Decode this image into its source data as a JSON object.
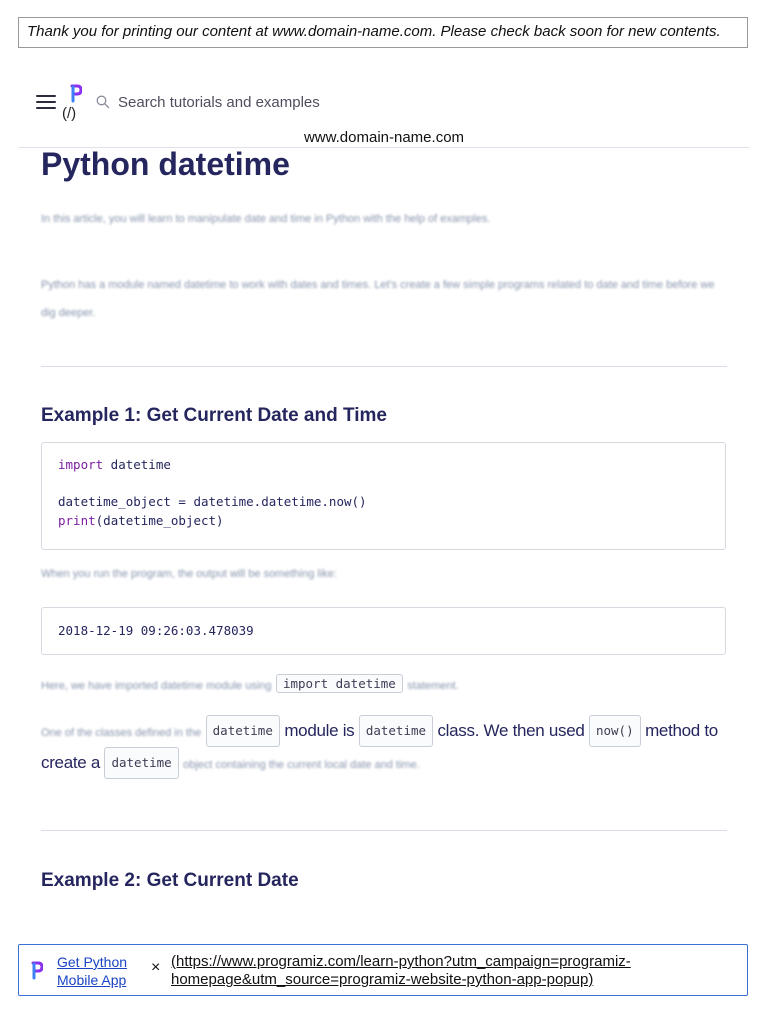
{
  "print_banner": "Thank you for printing our content at www.domain-name.com. Please check back soon for new contents.",
  "nav": {
    "logo_link": "(/)",
    "search_placeholder": "Search tutorials and examples",
    "domain": "www.domain-name.com",
    "icons": [
      "menu-icon",
      "programiz-logo-icon",
      "search-icon"
    ]
  },
  "article": {
    "title": "Python datetime",
    "intro_1": "In this article, you will learn to manipulate date and time in Python with the help of examples.",
    "intro_2": "Python has a module named datetime to work with dates and times. Let's create a few simple programs related to date and time before we dig deeper.",
    "example1": {
      "heading": "Example 1: Get Current Date and Time",
      "code": {
        "kw_import": "import",
        "line1_rest": " datetime",
        "line2": "datetime_object = datetime.datetime.now()",
        "kw_print": "print",
        "line3_rest": "(datetime_object)"
      },
      "run_text": "When you run the program, the output will be something like:",
      "output": "2018-12-19 09:26:03.478039",
      "para1_blur": "Here, we have imported datetime module using",
      "para1_code": "import datetime",
      "para1_end": "statement.",
      "para2_blur": "One of the classes defined in the",
      "para2_code1": "datetime",
      "para2_mid1": "module is",
      "para2_code2": "datetime",
      "para2_mid2": "class. We then used",
      "para2_code3": "now()",
      "para2_mid3": "method to create a",
      "para2_code4": "datetime",
      "para2_end": "object containing the current local date and time."
    },
    "example2": {
      "heading": "Example 2: Get Current Date"
    }
  },
  "app_bar": {
    "link_line1": "Get Python",
    "link_line2": "Mobile App",
    "close": "×",
    "url": "(https://www.programiz.com/learn-python?utm_campaign=programiz-homepage&utm_source=programiz-website-python-app-popup)"
  },
  "colors": {
    "heading": "#25265e",
    "keyword": "#7b1fa2",
    "link": "#1a44c4",
    "logo_blue": "#3b82f6",
    "logo_purple": "#8b2ff0"
  }
}
